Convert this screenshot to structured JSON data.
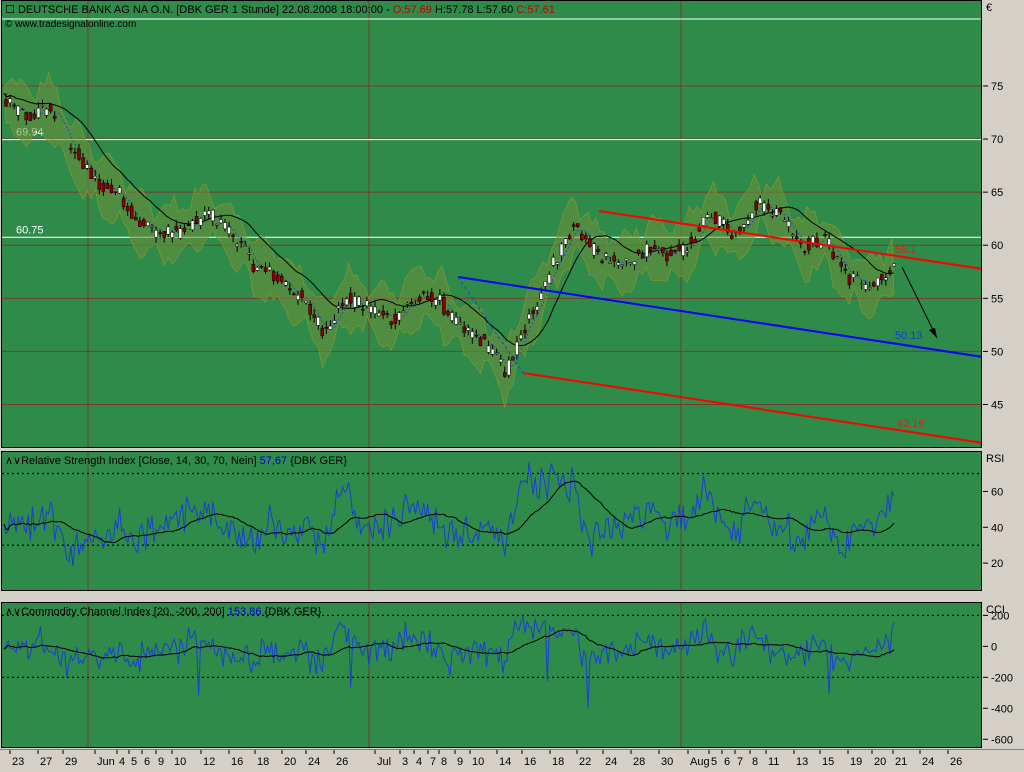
{
  "header": {
    "instrument": "DEUTSCHE BANK AG NA O.N. [DBK GER  1 Stunde]",
    "datetime": "22.08.2008 18:00:00",
    "open": "O:57.69",
    "high": "H:57.78",
    "low": "L:57.60",
    "close": "C:57.61",
    "source": "© www.tradesignalonline.com",
    "currency": "€"
  },
  "rsi_header": {
    "title": "Relative Strength Index [Close, 14, 30, 70, Nein]",
    "value": "57,67",
    "symbol": "{DBK GER}"
  },
  "cci_header": {
    "title": "Commodity Channel Index [20, -200, 200]",
    "value": "153,86",
    "symbol": "{DBK GER}"
  },
  "axis_names": {
    "rsi": "RSI",
    "cci": "CCI"
  },
  "colors": {
    "pane_bg": "#2e8b4a",
    "red_channel": "#ff0000",
    "blue_line": "#0000ff",
    "indicator": "#1a3fd6"
  },
  "chart_data": [
    {
      "type": "line",
      "name": "price",
      "ylim": [
        41,
        83
      ],
      "ticks": [
        45,
        50,
        55,
        60,
        65,
        70,
        75
      ],
      "horizontal_levels": [
        {
          "value": 69.94,
          "label": "69.94"
        },
        {
          "value": 60.75,
          "label": "60.75"
        }
      ],
      "channel_labels": [
        {
          "value": 58.1,
          "label": "58.1",
          "color": "red"
        },
        {
          "value": 50.13,
          "label": "50.13",
          "color": "blue"
        },
        {
          "value": 42.16,
          "label": "42.16",
          "color": "red"
        }
      ],
      "x": [
        "23",
        "27",
        "29",
        "Jun",
        "4",
        "5",
        "6",
        "9",
        "10",
        "12",
        "16",
        "18",
        "20",
        "24",
        "26",
        "Jul",
        "3",
        "4",
        "7",
        "8",
        "9",
        "10",
        "14",
        "16",
        "18",
        "22",
        "24",
        "28",
        "30",
        "Aug",
        "5",
        "6",
        "7",
        "8",
        "11",
        "13",
        "15",
        "19",
        "20",
        "21",
        "24",
        "26"
      ],
      "price_path": [
        73.5,
        72,
        73,
        69,
        66,
        65,
        62,
        61,
        61.5,
        63,
        61,
        58,
        57,
        55,
        52,
        55,
        54,
        53,
        55,
        55,
        52,
        51,
        48,
        53,
        58,
        62,
        59,
        58,
        59.5,
        59,
        60,
        63,
        61,
        64,
        63,
        60,
        60.5,
        57,
        56,
        57.6
      ],
      "series": [
        {
          "name": "Relative Strength Index",
          "ylim": [
            5,
            82
          ],
          "ticks": [
            20,
            40,
            60
          ],
          "levels": [
            30,
            70
          ],
          "last": 57.67
        },
        {
          "name": "Commodity Channel Index",
          "ylim": [
            -650,
            280
          ],
          "ticks": [
            -600,
            -400,
            -200,
            0,
            200
          ],
          "levels": [
            -200,
            200
          ],
          "last": 153.86
        }
      ]
    }
  ]
}
